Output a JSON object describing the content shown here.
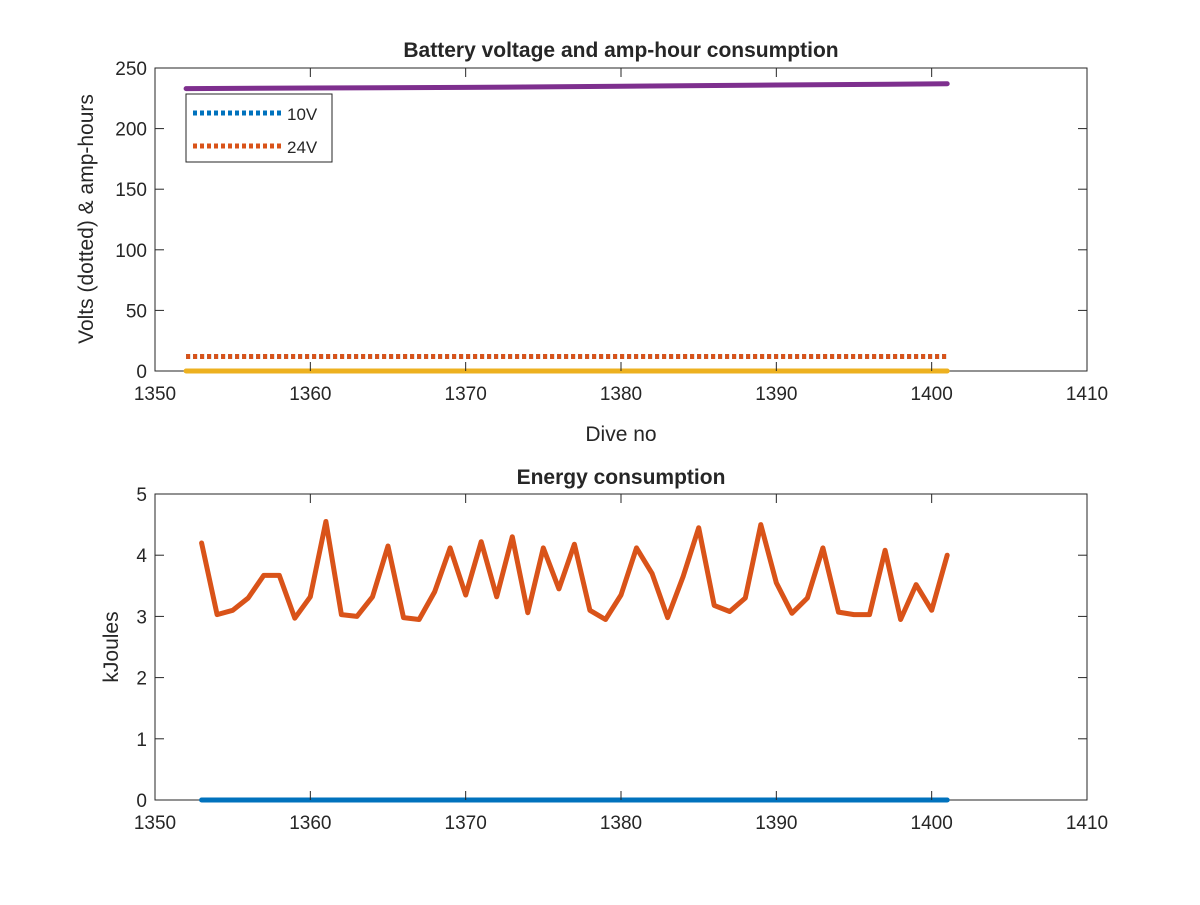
{
  "chart_data": [
    {
      "type": "line",
      "title": "Battery voltage and amp-hour consumption",
      "xlabel": "Dive no",
      "ylabel": "Volts (dotted) & amp-hours",
      "xlim": [
        1350,
        1410
      ],
      "ylim": [
        0,
        250
      ],
      "xticks": [
        "1350",
        "1360",
        "1370",
        "1380",
        "1390",
        "1400",
        "1410"
      ],
      "yticks": [
        "0",
        "50",
        "100",
        "150",
        "200",
        "250"
      ],
      "grid": false,
      "legend": {
        "placement": "top-left",
        "entries": [
          "10V",
          "24V"
        ]
      },
      "series": [
        {
          "name": "10V",
          "style": "dotted",
          "color": "#0072BD",
          "x": [
            1352,
            1401
          ],
          "y": [
            12,
            12
          ]
        },
        {
          "name": "24V",
          "style": "dotted",
          "color": "#D95319",
          "x": [
            1352,
            1401
          ],
          "y": [
            12,
            12
          ]
        },
        {
          "style": "solid",
          "color": "#7E2F8E",
          "x": [
            1352,
            1360,
            1370,
            1380,
            1390,
            1401
          ],
          "y": [
            233,
            233.5,
            234,
            235,
            236,
            237
          ]
        },
        {
          "style": "solid",
          "color": "#EDB120",
          "x": [
            1352,
            1401
          ],
          "y": [
            0,
            0
          ]
        }
      ]
    },
    {
      "type": "line",
      "title": "Energy consumption",
      "xlabel": "",
      "ylabel": "kJoules",
      "xlim": [
        1350,
        1410
      ],
      "ylim": [
        0,
        5
      ],
      "xticks": [
        "1350",
        "1360",
        "1370",
        "1380",
        "1390",
        "1400",
        "1410"
      ],
      "yticks": [
        "0",
        "1",
        "2",
        "3",
        "4",
        "5"
      ],
      "grid": false,
      "series": [
        {
          "style": "solid",
          "color": "#0072BD",
          "x": [
            1353,
            1401
          ],
          "y": [
            0,
            0
          ]
        },
        {
          "style": "solid",
          "color": "#D95319",
          "x": [
            1353,
            1354,
            1355,
            1356,
            1357,
            1358,
            1359,
            1360,
            1361,
            1362,
            1363,
            1364,
            1365,
            1366,
            1367,
            1368,
            1369,
            1370,
            1371,
            1372,
            1373,
            1374,
            1375,
            1376,
            1377,
            1378,
            1379,
            1380,
            1381,
            1382,
            1383,
            1384,
            1385,
            1386,
            1387,
            1388,
            1389,
            1390,
            1391,
            1392,
            1393,
            1394,
            1395,
            1396,
            1397,
            1398,
            1399,
            1400,
            1401
          ],
          "y": [
            4.2,
            3.03,
            3.1,
            3.3,
            3.67,
            3.67,
            2.97,
            3.32,
            4.55,
            3.03,
            3.0,
            3.32,
            4.15,
            2.98,
            2.95,
            3.4,
            4.12,
            3.35,
            4.22,
            3.32,
            4.3,
            3.06,
            4.12,
            3.45,
            4.18,
            3.1,
            2.95,
            3.35,
            4.12,
            3.7,
            2.98,
            3.65,
            4.45,
            3.18,
            3.08,
            3.3,
            4.5,
            3.55,
            3.05,
            3.3,
            4.12,
            3.07,
            3.03,
            3.03,
            4.08,
            2.95,
            3.52,
            3.1,
            4.0
          ]
        }
      ]
    }
  ]
}
